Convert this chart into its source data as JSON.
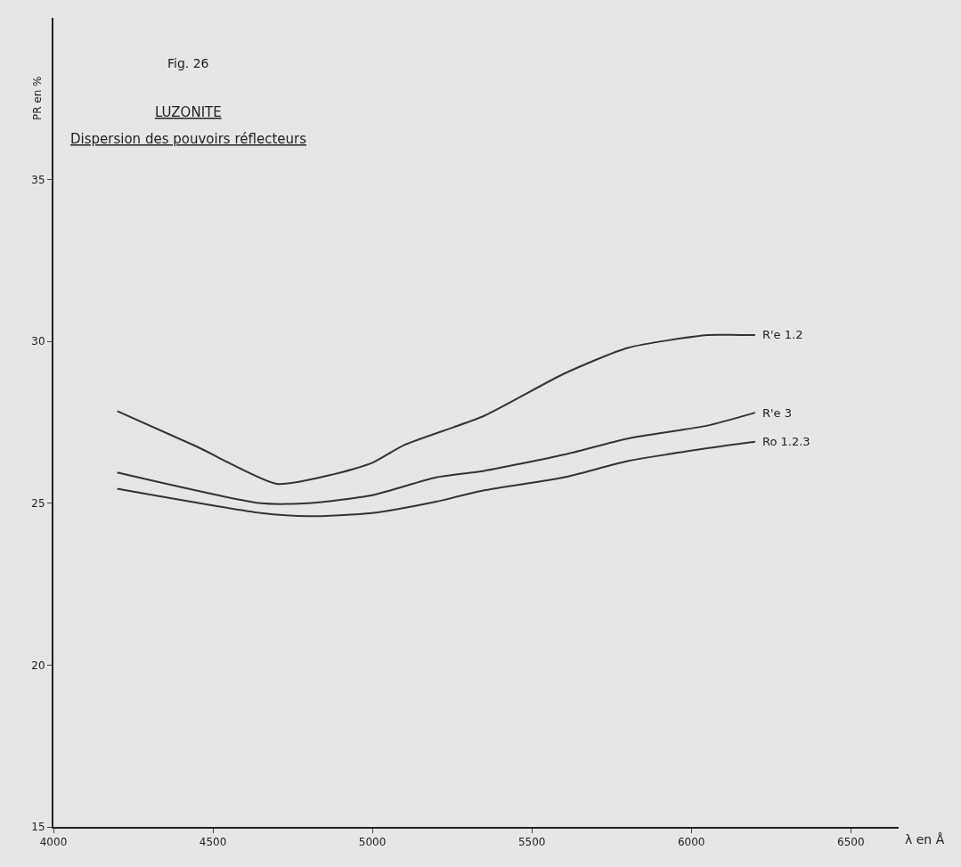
{
  "chart_data": {
    "type": "line",
    "title": "LUZONITE",
    "subtitle": "Dispersion des pouvoirs réflecteurs",
    "xlabel": "λ en Å",
    "ylabel": "PR en %",
    "annotations": [
      "Fig. 26"
    ],
    "series": [
      {
        "name": "R'e 1.2",
        "color": "#333333",
        "x": [
          4200,
          4450,
          4700,
          4880,
          5000,
          5100,
          5350,
          5600,
          5800,
          6050,
          6150,
          6200
        ],
        "values": [
          27.85,
          26.75,
          25.6,
          25.9,
          26.25,
          26.8,
          27.7,
          29.0,
          29.8,
          30.2,
          30.2,
          30.2
        ]
      },
      {
        "name": "R'e 3",
        "color": "#333333",
        "x": [
          4200,
          4650,
          4800,
          5000,
          5200,
          5350,
          5600,
          5800,
          6050,
          6200
        ],
        "values": [
          25.95,
          25.0,
          25.0,
          25.25,
          25.8,
          26.0,
          26.5,
          27.0,
          27.4,
          27.8
        ]
      },
      {
        "name": "Ro 1.2.3",
        "color": "#333333",
        "x": [
          4200,
          4650,
          4800,
          5000,
          5200,
          5350,
          5600,
          5800,
          6050,
          6200
        ],
        "values": [
          25.45,
          24.7,
          24.6,
          24.7,
          25.05,
          25.4,
          25.8,
          26.3,
          26.7,
          26.9
        ]
      }
    ],
    "xlim": [
      4000,
      6650
    ],
    "xticks": [
      4000,
      4500,
      5000,
      5500,
      6000,
      6500
    ],
    "ylim": [
      15,
      40
    ],
    "yticks": [
      15,
      20,
      25,
      30,
      35
    ],
    "grid": false,
    "legend": false,
    "marker": "none",
    "line_style": "solid"
  }
}
